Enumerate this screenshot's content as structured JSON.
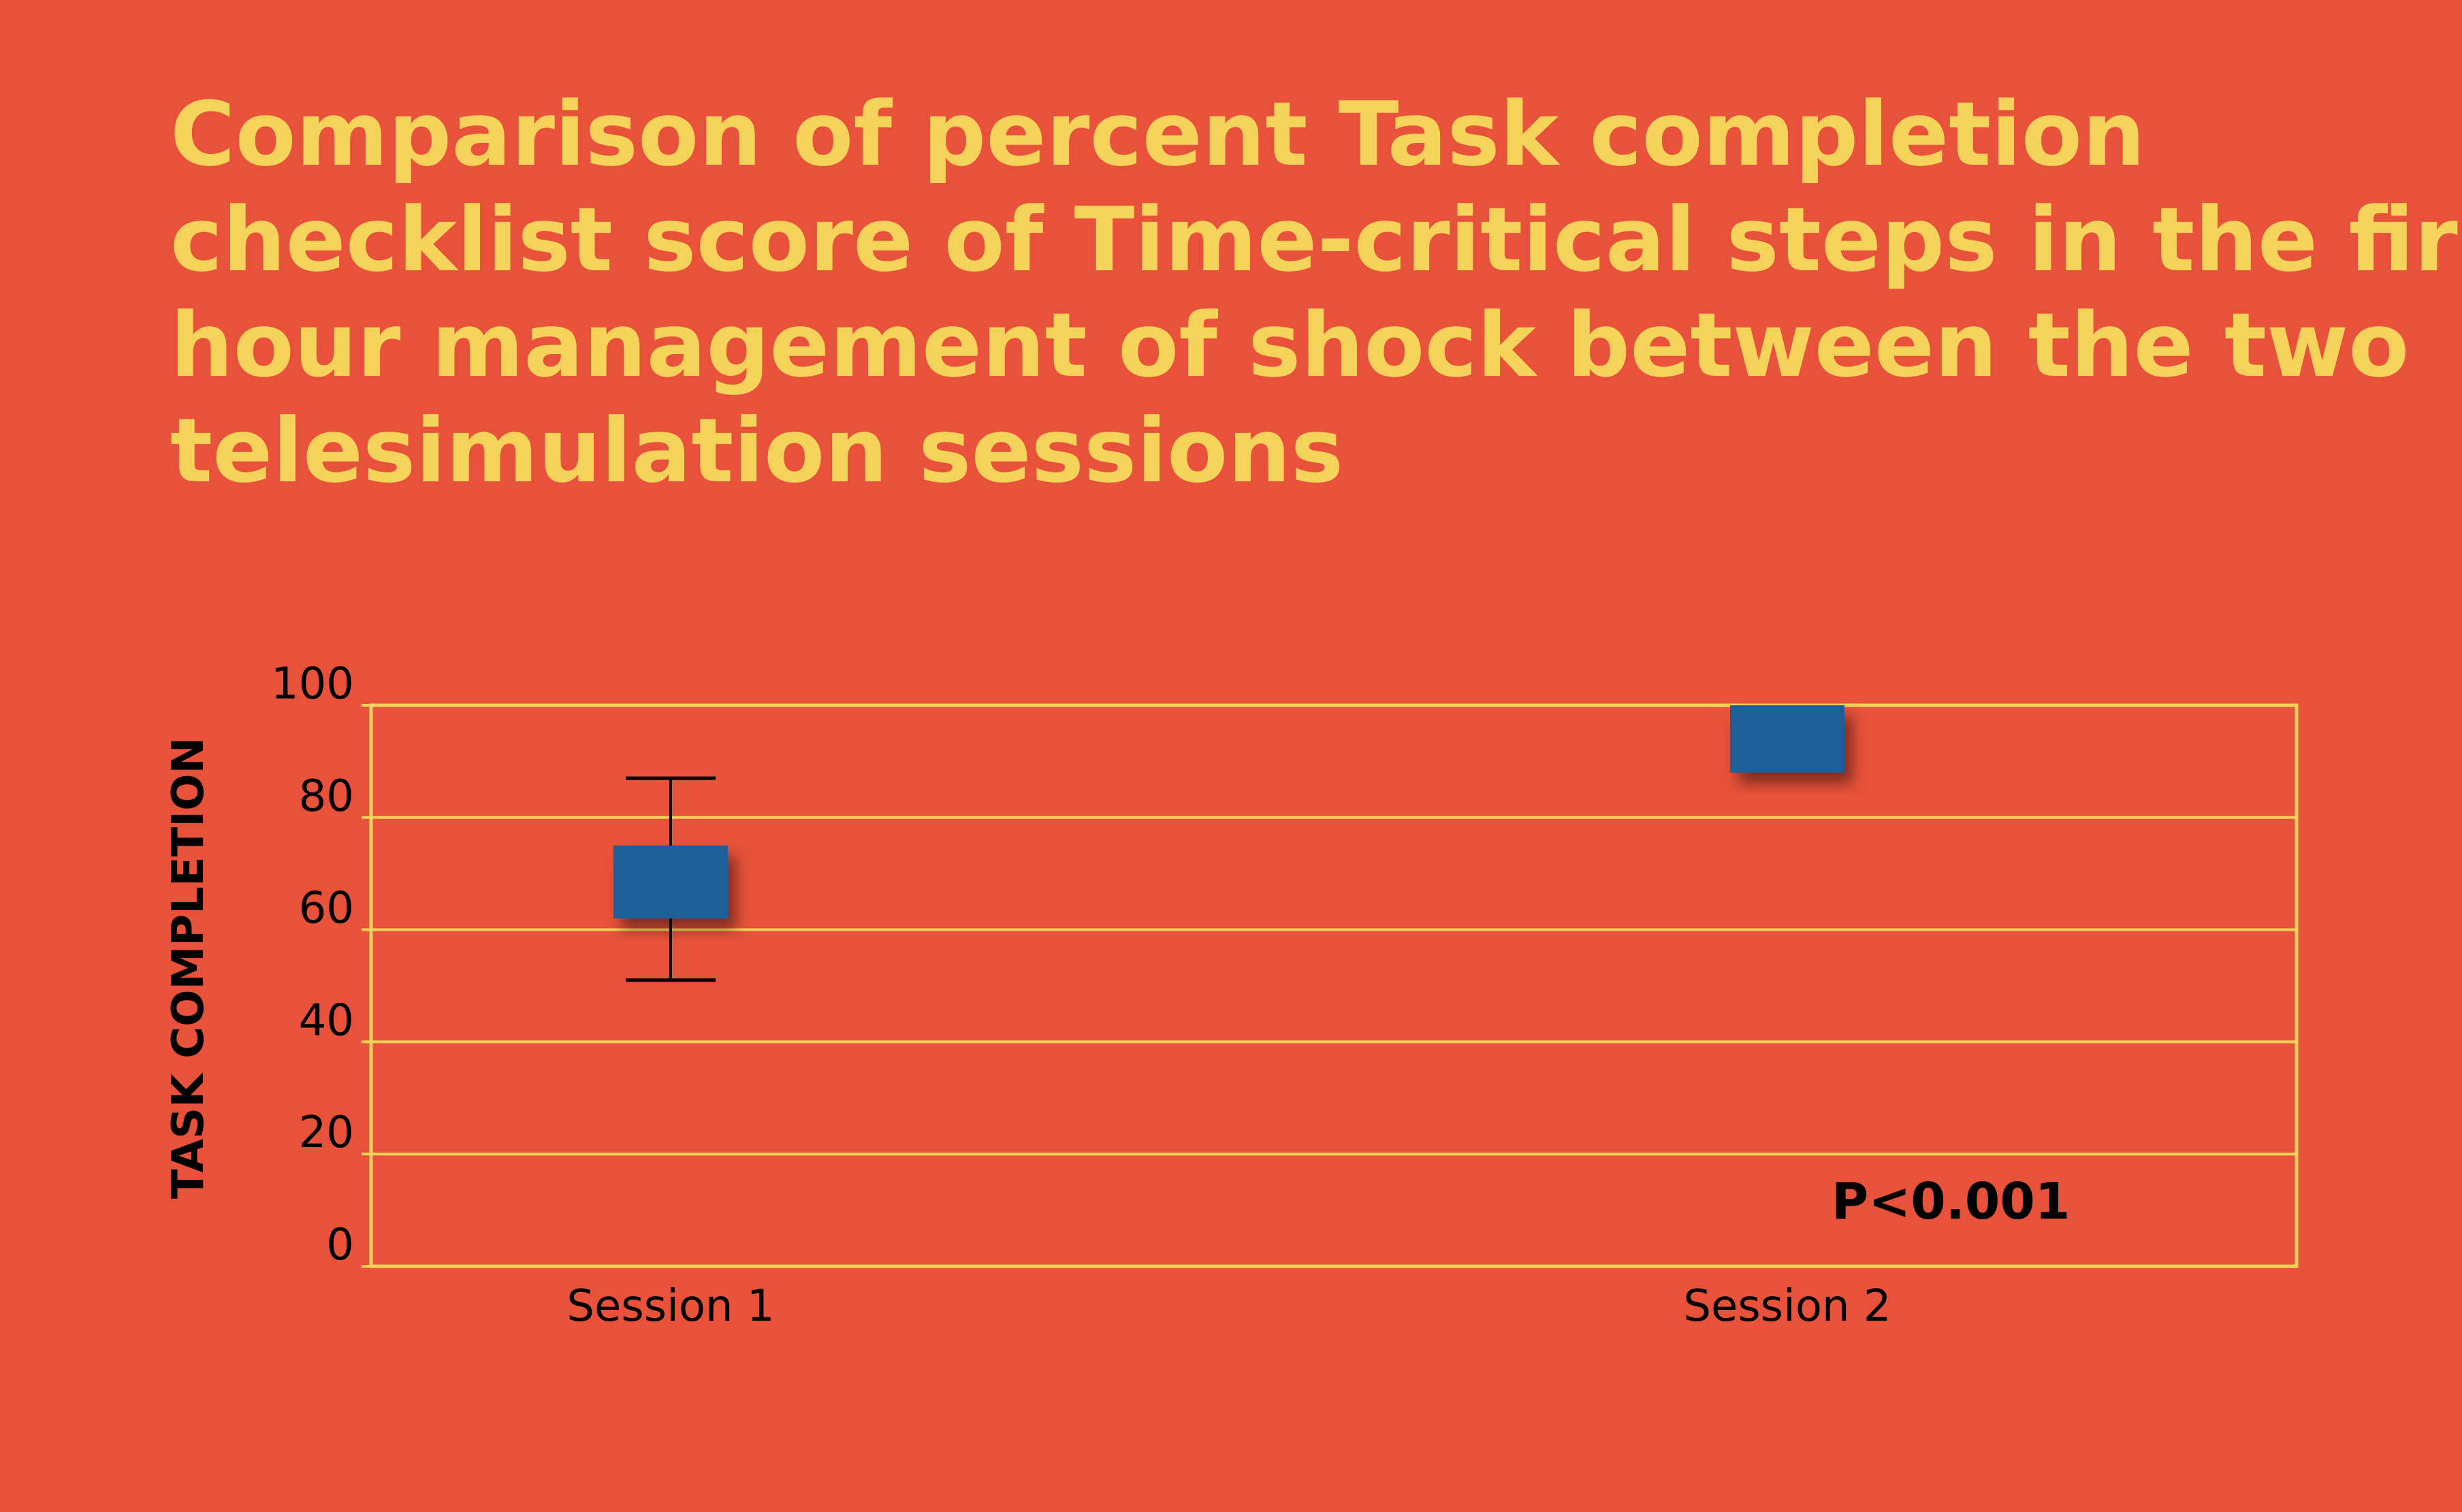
{
  "chart_data": {
    "type": "box",
    "title_lines": [
      "Comparison of percent Task completion",
      "checklist score of Time-critical steps in the first",
      "hour management of shock between the two",
      "telesimulation sessions"
    ],
    "ylabel": "TASK COMPLETION",
    "xlabel": "",
    "ylim": [
      0,
      100
    ],
    "yticks": [
      "0",
      "20",
      "40",
      "60",
      "80",
      "100"
    ],
    "categories": [
      "Session 1",
      "Session 2"
    ],
    "boxes": [
      {
        "category": "Session 1",
        "whisker_low": 51,
        "q1": 62,
        "q3": 75,
        "whisker_high": 87
      },
      {
        "category": "Session 2",
        "whisker_low": 88,
        "q1": 88,
        "q3": 100,
        "whisker_high": 100
      }
    ],
    "annotation": "P<0.001",
    "grid": true,
    "colors": {
      "background": "#e8523a",
      "title": "#f5d25a",
      "grid": "#f5d25a",
      "box": "#1f5e99",
      "text": "#000000"
    }
  }
}
